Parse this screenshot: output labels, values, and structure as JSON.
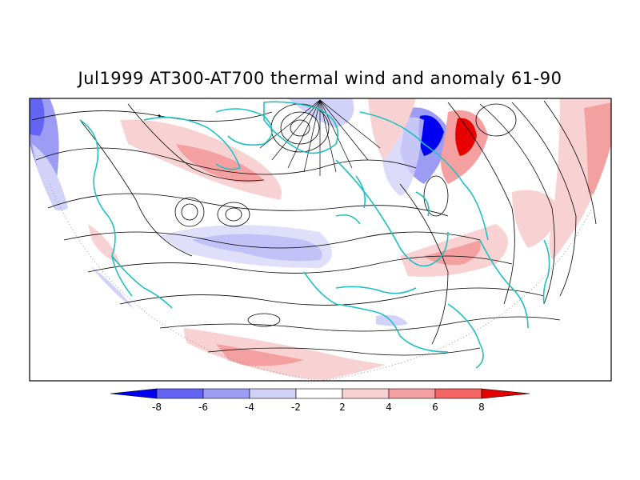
{
  "title": "Jul1999 AT300-AT700 thermal wind and anomaly 61-90",
  "colorbar": {
    "labels": [
      "-8",
      "-6",
      "-4",
      "-2",
      "2",
      "4",
      "6",
      "8"
    ],
    "colors": [
      "#0000f0",
      "#6464f4",
      "#9c9cf5",
      "#d2d2f8",
      "#ffffff",
      "#f8d2d2",
      "#f5a0a0",
      "#f46464",
      "#e60000"
    ]
  },
  "map": {
    "coastline_color": "#20c0c0",
    "streamline_color": "#000000"
  }
}
